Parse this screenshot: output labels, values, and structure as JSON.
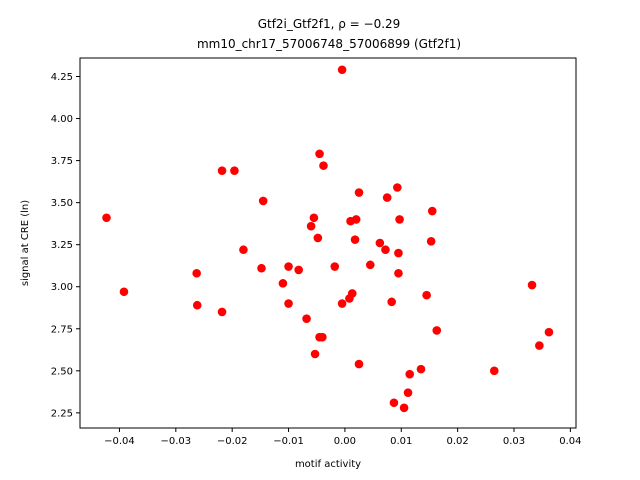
{
  "chart_data": {
    "type": "scatter",
    "title_line1": "Gtf2i_Gtf2f1, ρ = −0.29",
    "title_line2": "mm10_chr17_57006748_57006899 (Gtf2f1)",
    "xlabel": "motif activity",
    "ylabel": "signal at CRE (ln)",
    "xlim": [
      -0.047,
      0.041
    ],
    "ylim": [
      2.16,
      4.36
    ],
    "xticks": [
      -0.04,
      -0.03,
      -0.02,
      -0.01,
      0.0,
      0.01,
      0.02,
      0.03,
      0.04
    ],
    "xtick_labels": [
      "−0.04",
      "−0.03",
      "−0.02",
      "−0.01",
      "0.00",
      "0.01",
      "0.02",
      "0.03",
      "0.04"
    ],
    "yticks": [
      2.25,
      2.5,
      2.75,
      3.0,
      3.25,
      3.5,
      3.75,
      4.0,
      4.25
    ],
    "ytick_labels": [
      "2.25",
      "2.50",
      "2.75",
      "3.00",
      "3.25",
      "3.50",
      "3.75",
      "4.00",
      "4.25"
    ],
    "grid": false,
    "marker_color": "#ff0000",
    "points": [
      {
        "x": -0.0423,
        "y": 3.41
      },
      {
        "x": -0.0392,
        "y": 2.97
      },
      {
        "x": -0.0263,
        "y": 3.08
      },
      {
        "x": -0.0262,
        "y": 2.89
      },
      {
        "x": -0.0218,
        "y": 2.85
      },
      {
        "x": -0.0218,
        "y": 3.69
      },
      {
        "x": -0.0196,
        "y": 3.69
      },
      {
        "x": -0.018,
        "y": 3.22
      },
      {
        "x": -0.0148,
        "y": 3.11
      },
      {
        "x": -0.0145,
        "y": 3.51
      },
      {
        "x": -0.011,
        "y": 3.02
      },
      {
        "x": -0.01,
        "y": 2.9
      },
      {
        "x": -0.01,
        "y": 3.12
      },
      {
        "x": -0.0082,
        "y": 3.1
      },
      {
        "x": -0.0068,
        "y": 2.81
      },
      {
        "x": -0.006,
        "y": 3.36
      },
      {
        "x": -0.0055,
        "y": 3.41
      },
      {
        "x": -0.0053,
        "y": 2.6
      },
      {
        "x": -0.0048,
        "y": 3.29
      },
      {
        "x": -0.0045,
        "y": 2.7
      },
      {
        "x": -0.0045,
        "y": 3.79
      },
      {
        "x": -0.004,
        "y": 2.7
      },
      {
        "x": -0.0038,
        "y": 3.72
      },
      {
        "x": -0.0018,
        "y": 3.12
      },
      {
        "x": -0.0005,
        "y": 4.29
      },
      {
        "x": -0.0005,
        "y": 2.9
      },
      {
        "x": 0.0008,
        "y": 2.93
      },
      {
        "x": 0.001,
        "y": 3.39
      },
      {
        "x": 0.0013,
        "y": 2.96
      },
      {
        "x": 0.0018,
        "y": 3.28
      },
      {
        "x": 0.002,
        "y": 3.4
      },
      {
        "x": 0.0025,
        "y": 2.54
      },
      {
        "x": 0.0025,
        "y": 3.56
      },
      {
        "x": 0.0045,
        "y": 3.13
      },
      {
        "x": 0.0062,
        "y": 3.26
      },
      {
        "x": 0.0072,
        "y": 3.22
      },
      {
        "x": 0.0075,
        "y": 3.53
      },
      {
        "x": 0.0083,
        "y": 2.91
      },
      {
        "x": 0.0087,
        "y": 2.31
      },
      {
        "x": 0.0093,
        "y": 3.59
      },
      {
        "x": 0.0095,
        "y": 3.2
      },
      {
        "x": 0.0095,
        "y": 3.08
      },
      {
        "x": 0.0097,
        "y": 3.4
      },
      {
        "x": 0.0105,
        "y": 2.28
      },
      {
        "x": 0.0112,
        "y": 2.37
      },
      {
        "x": 0.0115,
        "y": 2.48
      },
      {
        "x": 0.0135,
        "y": 2.51
      },
      {
        "x": 0.0145,
        "y": 2.95
      },
      {
        "x": 0.0153,
        "y": 3.27
      },
      {
        "x": 0.0155,
        "y": 3.45
      },
      {
        "x": 0.0163,
        "y": 2.74
      },
      {
        "x": 0.0265,
        "y": 2.5
      },
      {
        "x": 0.0332,
        "y": 3.01
      },
      {
        "x": 0.0345,
        "y": 2.65
      },
      {
        "x": 0.0362,
        "y": 2.73
      }
    ]
  }
}
